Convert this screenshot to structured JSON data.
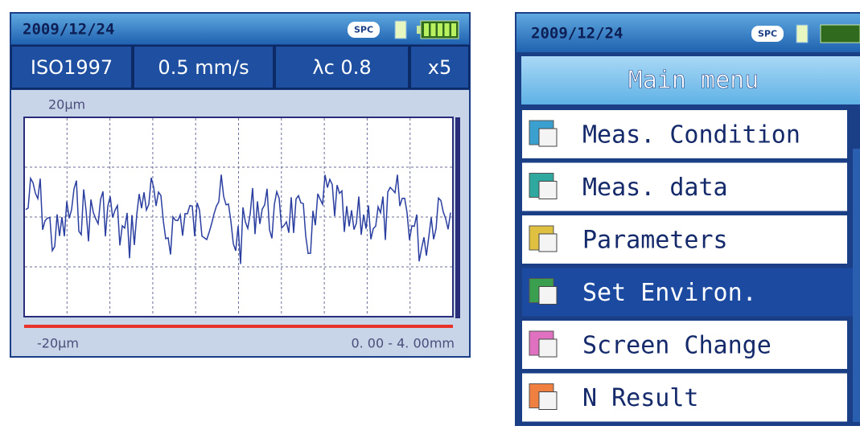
{
  "left_screen": {
    "status_bar": {
      "date": "2009/12/24",
      "badge": "SPC"
    },
    "settings": [
      "ISO1997",
      "0.5 mm/s",
      "λc 0.8",
      "x5"
    ],
    "graph": {
      "top_label": "20µm",
      "bottom_label": "-20µm",
      "range": "0. 00 - 4. 00mm"
    }
  },
  "right_screen": {
    "status_bar": {
      "date": "2009/12/24",
      "badge": "SPC"
    },
    "title": "Main menu",
    "items": [
      "Meas. Condition",
      "Meas. data",
      "Parameters",
      "Set Environ.",
      "Screen Change",
      "N Result"
    ],
    "selected_item": 3
  }
}
